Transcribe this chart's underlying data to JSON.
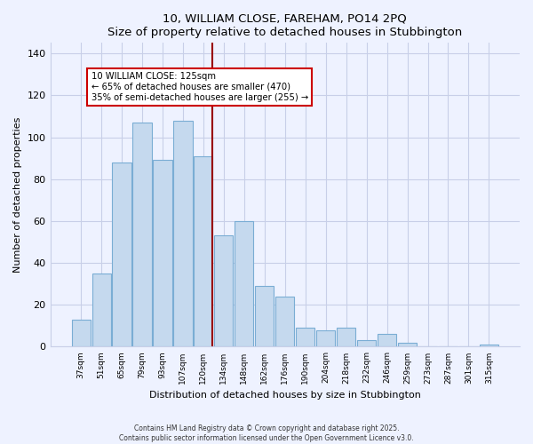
{
  "title": "10, WILLIAM CLOSE, FAREHAM, PO14 2PQ",
  "subtitle": "Size of property relative to detached houses in Stubbington",
  "xlabel": "Distribution of detached houses by size in Stubbington",
  "ylabel": "Number of detached properties",
  "bar_labels": [
    "37sqm",
    "51sqm",
    "65sqm",
    "79sqm",
    "93sqm",
    "107sqm",
    "120sqm",
    "134sqm",
    "148sqm",
    "162sqm",
    "176sqm",
    "190sqm",
    "204sqm",
    "218sqm",
    "232sqm",
    "246sqm",
    "259sqm",
    "273sqm",
    "287sqm",
    "301sqm",
    "315sqm"
  ],
  "bar_values": [
    13,
    35,
    88,
    107,
    89,
    108,
    91,
    53,
    60,
    29,
    24,
    9,
    8,
    9,
    3,
    6,
    2,
    0,
    0,
    0,
    1
  ],
  "bar_color": "#c5d9ee",
  "bar_edge_color": "#7aadd4",
  "vline_color": "#990000",
  "annotation_title": "10 WILLIAM CLOSE: 125sqm",
  "annotation_line1": "← 65% of detached houses are smaller (470)",
  "annotation_line2": "35% of semi-detached houses are larger (255) →",
  "annotation_box_color": "#ffffff",
  "annotation_box_edge": "#cc0000",
  "ylim": [
    0,
    145
  ],
  "yticks": [
    0,
    20,
    40,
    60,
    80,
    100,
    120,
    140
  ],
  "footer1": "Contains HM Land Registry data © Crown copyright and database right 2025.",
  "footer2": "Contains public sector information licensed under the Open Government Licence v3.0.",
  "bg_color": "#eef2ff",
  "grid_color": "#c8cfe8"
}
